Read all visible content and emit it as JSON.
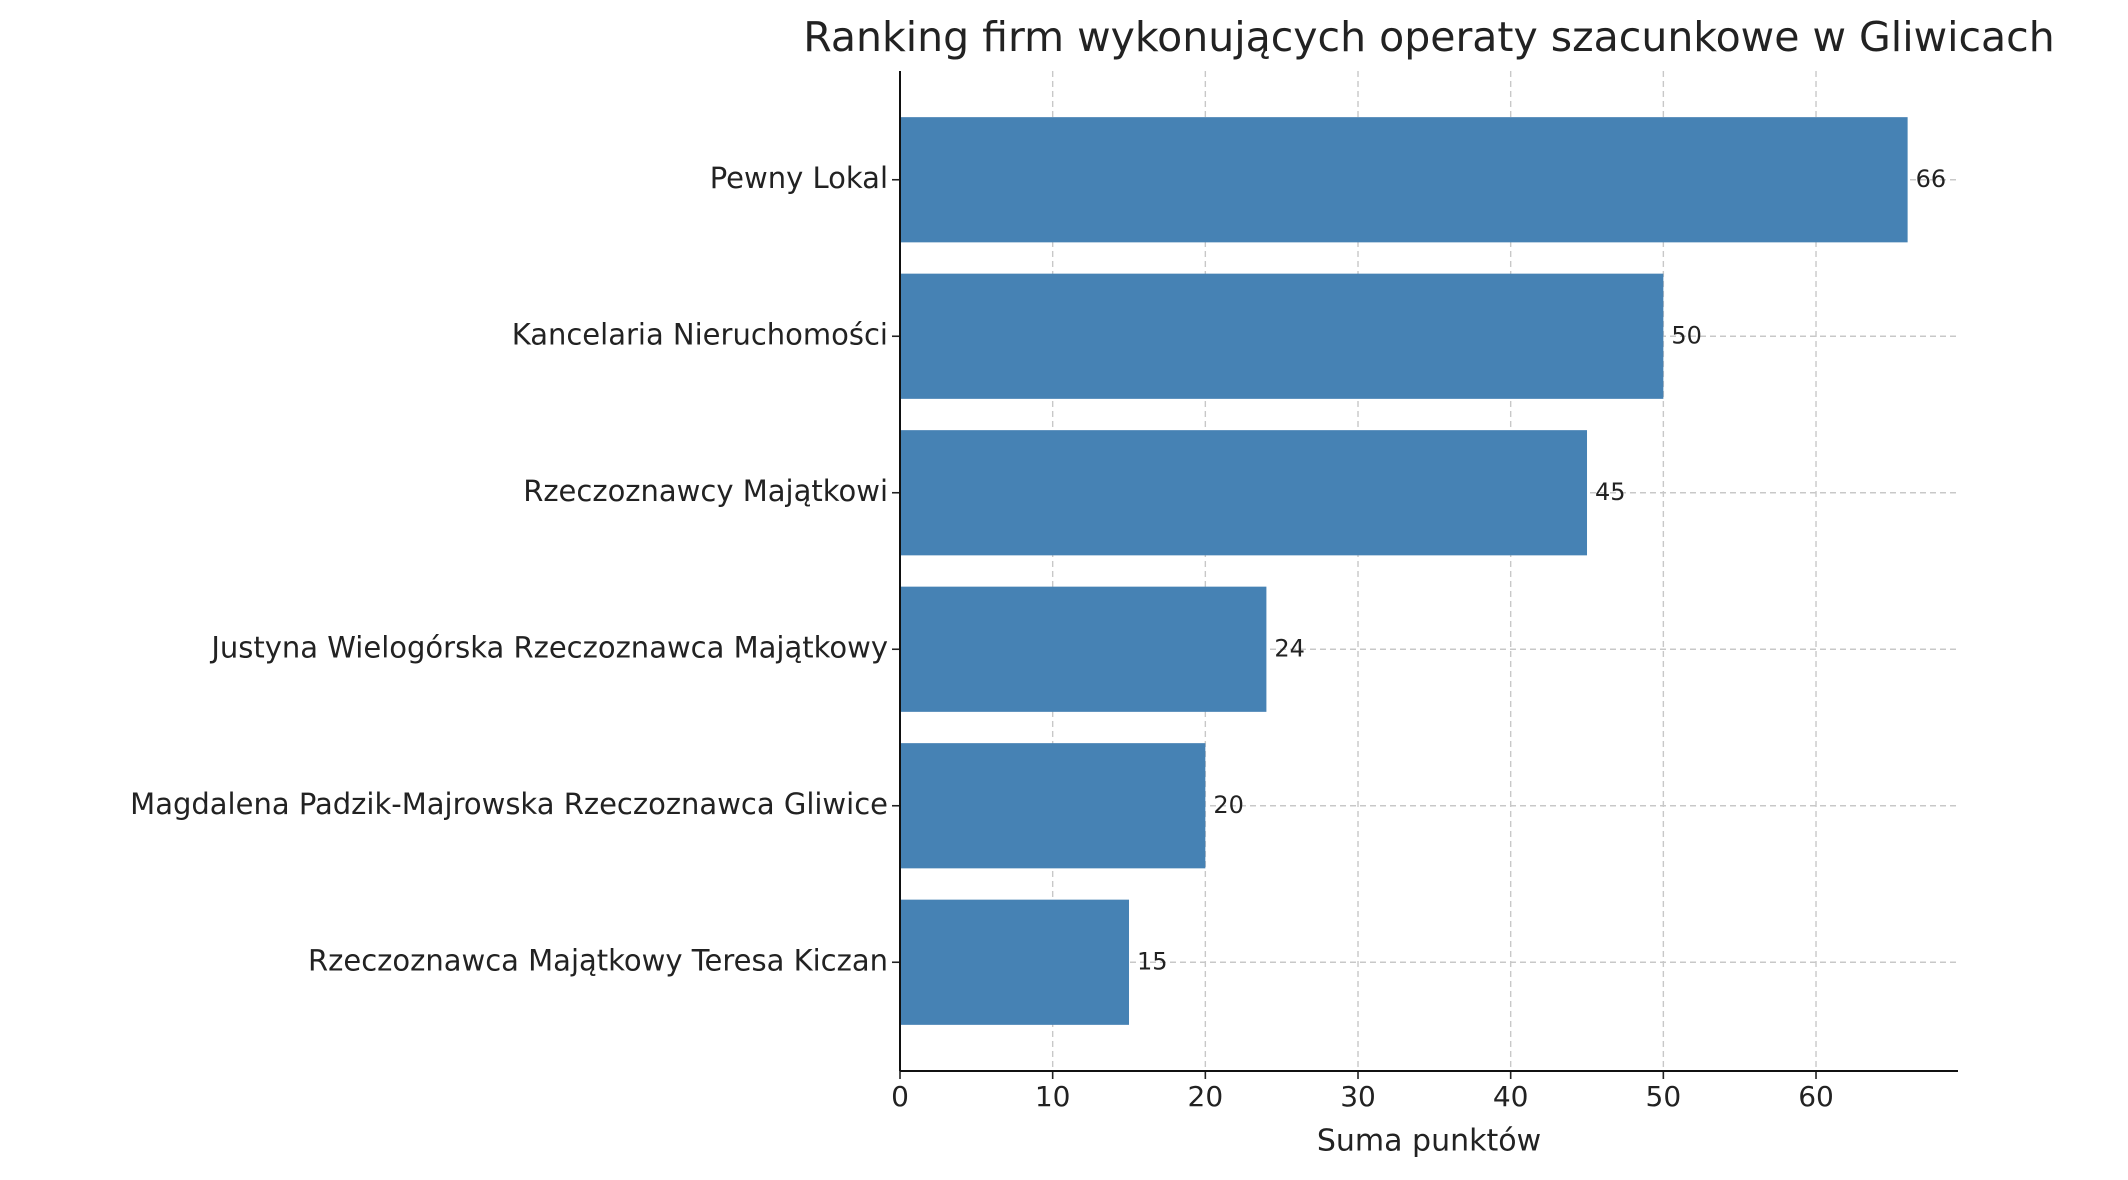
{
  "chart_data": {
    "type": "barh",
    "title": "Ranking firm wykonujących operaty szacunkowe w Gliwicach",
    "x_label": "Suma punktów",
    "categories": [
      "Pewny Lokal",
      "Kancelaria Nieruchomości",
      "Rzeczoznawcy Majątkowi",
      "Justyna Wielogórska Rzeczoznawca Majątkowy",
      "Magdalena Padzik-Majrowska Rzeczoznawca Gliwice",
      "Rzeczoznawca Majątkowy Teresa Kiczan"
    ],
    "values": [
      66,
      50,
      45,
      24,
      20,
      15
    ],
    "color": "#4682b4",
    "xlim": [
      0,
      69.3
    ],
    "xticks": [
      0,
      10,
      20,
      30,
      40,
      50,
      60
    ],
    "grid": true
  }
}
